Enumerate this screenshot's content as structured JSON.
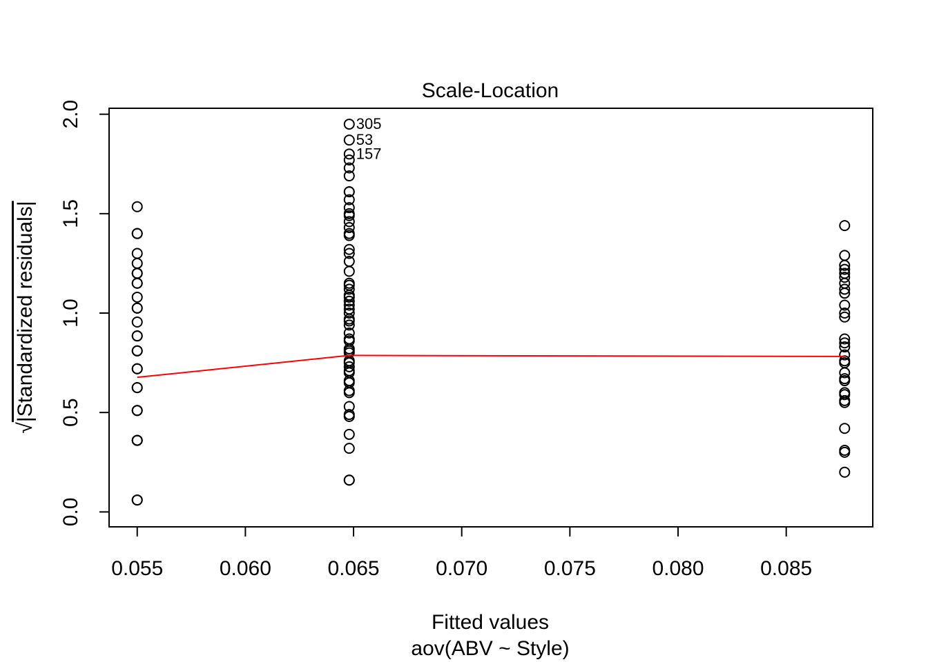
{
  "chart_data": {
    "type": "scatter",
    "title": "Scale-Location",
    "xlabel": "Fitted values",
    "xlabel_sub": "aov(ABV ~ Style)",
    "ylabel_radical": "√",
    "ylabel_text": "|Standardized residuals|",
    "xlim": [
      0.0537,
      0.089
    ],
    "ylim": [
      -0.075,
      2.03
    ],
    "xticks": [
      0.055,
      0.06,
      0.065,
      0.07,
      0.075,
      0.08,
      0.085
    ],
    "xtick_labels": [
      "0.055",
      "0.060",
      "0.065",
      "0.070",
      "0.075",
      "0.080",
      "0.085"
    ],
    "yticks": [
      0.0,
      0.5,
      1.0,
      1.5,
      2.0
    ],
    "ytick_labels": [
      "0.0",
      "0.5",
      "1.0",
      "1.5",
      "2.0"
    ],
    "grid": false,
    "series": [
      {
        "x": 0.055,
        "y": [
          1.535,
          1.4,
          1.4,
          1.3,
          1.25,
          1.2,
          1.2,
          1.15,
          1.15,
          1.08,
          1.025,
          1.025,
          0.955,
          0.885,
          0.885,
          0.81,
          0.81,
          0.72,
          0.72,
          0.625,
          0.625,
          0.51,
          0.51,
          0.36,
          0.36,
          0.36,
          0.06,
          0.06
        ]
      },
      {
        "x": 0.0648,
        "y": [
          1.95,
          1.87,
          1.8,
          1.77,
          1.73,
          1.69,
          1.61,
          1.61,
          1.57,
          1.53,
          1.5,
          1.49,
          1.46,
          1.43,
          1.4,
          1.39,
          1.32,
          1.3,
          1.26,
          1.21,
          1.15,
          1.14,
          1.12,
          1.09,
          1.08,
          1.06,
          1.04,
          1.02,
          1.0,
          0.97,
          0.96,
          0.94,
          0.9,
          0.87,
          0.86,
          0.82,
          0.81,
          0.8,
          0.76,
          0.75,
          0.73,
          0.71,
          0.7,
          0.66,
          0.65,
          0.61,
          0.6,
          0.53,
          0.49,
          0.48,
          0.39,
          0.32,
          0.16,
          0.16
        ]
      },
      {
        "x": 0.0877,
        "y": [
          1.44,
          1.29,
          1.24,
          1.22,
          1.2,
          1.18,
          1.15,
          1.12,
          1.1,
          1.04,
          1.0,
          0.98,
          0.87,
          0.85,
          0.83,
          0.79,
          0.76,
          0.75,
          0.7,
          0.67,
          0.66,
          0.6,
          0.59,
          0.56,
          0.55,
          0.42,
          0.31,
          0.3,
          0.2
        ]
      }
    ],
    "smooth_line": {
      "color": "#ff0000",
      "x": [
        0.055,
        0.0648,
        0.0877
      ],
      "y": [
        0.677,
        0.787,
        0.782
      ]
    },
    "labeled_points": [
      {
        "label": "305",
        "x": 0.0648,
        "y": 1.95
      },
      {
        "label": "53",
        "x": 0.0648,
        "y": 1.87
      },
      {
        "label": "157",
        "x": 0.0648,
        "y": 1.8
      }
    ]
  }
}
